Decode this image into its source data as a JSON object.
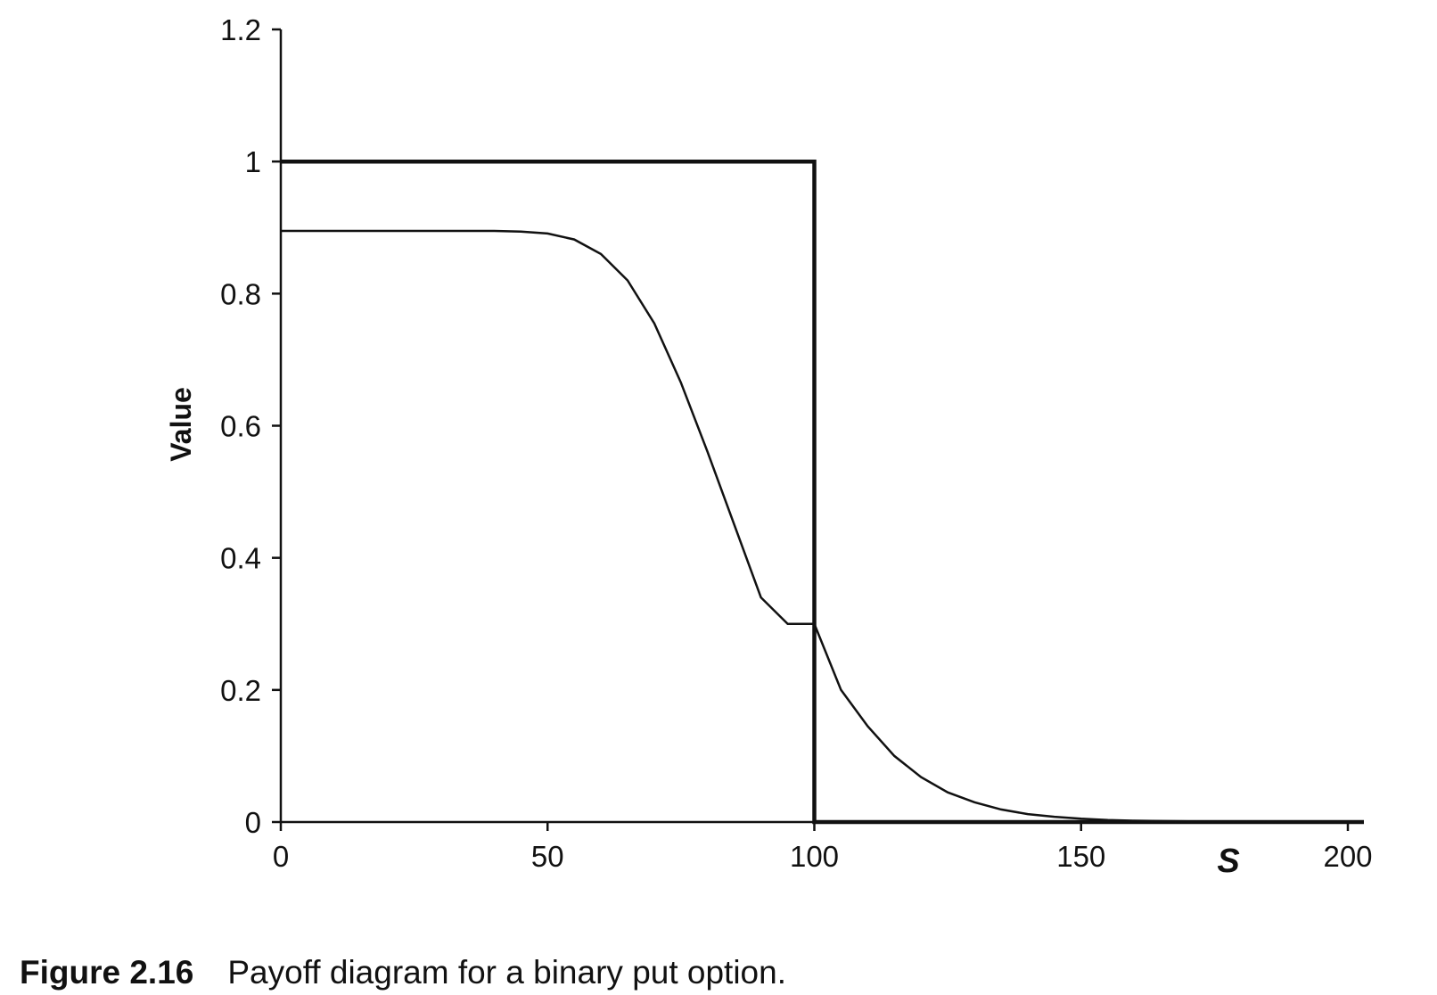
{
  "chart_data": {
    "type": "line",
    "xlabel": "S",
    "ylabel": "Value",
    "xlim": [
      0,
      200
    ],
    "ylim": [
      0,
      1.2
    ],
    "x_ticks": [
      "0",
      "50",
      "100",
      "150",
      "200"
    ],
    "y_ticks": [
      "0",
      "0.2",
      "0.4",
      "0.6",
      "0.8",
      "1",
      "1.2"
    ],
    "grid": false,
    "legend": "none",
    "series": [
      {
        "style": "thick",
        "x": [
          0,
          100,
          100,
          203
        ],
        "y": [
          1,
          1,
          0,
          0
        ]
      },
      {
        "style": "thin",
        "x": [
          0,
          10,
          20,
          30,
          40,
          45,
          50,
          55,
          60,
          65,
          70,
          75,
          80,
          85,
          90,
          95,
          100,
          105,
          110,
          115,
          120,
          125,
          130,
          135,
          140,
          145,
          150,
          155,
          160,
          170,
          180,
          190,
          203
        ],
        "y": [
          0.895,
          0.895,
          0.895,
          0.895,
          0.895,
          0.894,
          0.891,
          0.882,
          0.86,
          0.82,
          0.755,
          0.665,
          0.56,
          0.45,
          0.34,
          0.3,
          0.3,
          0.2,
          0.145,
          0.1,
          0.068,
          0.045,
          0.03,
          0.019,
          0.012,
          0.008,
          0.005,
          0.003,
          0.002,
          0.001,
          0.0005,
          0.0002,
          0
        ]
      }
    ]
  },
  "caption": {
    "label": "Figure 2.16",
    "text": "Payoff diagram for a binary put option."
  }
}
